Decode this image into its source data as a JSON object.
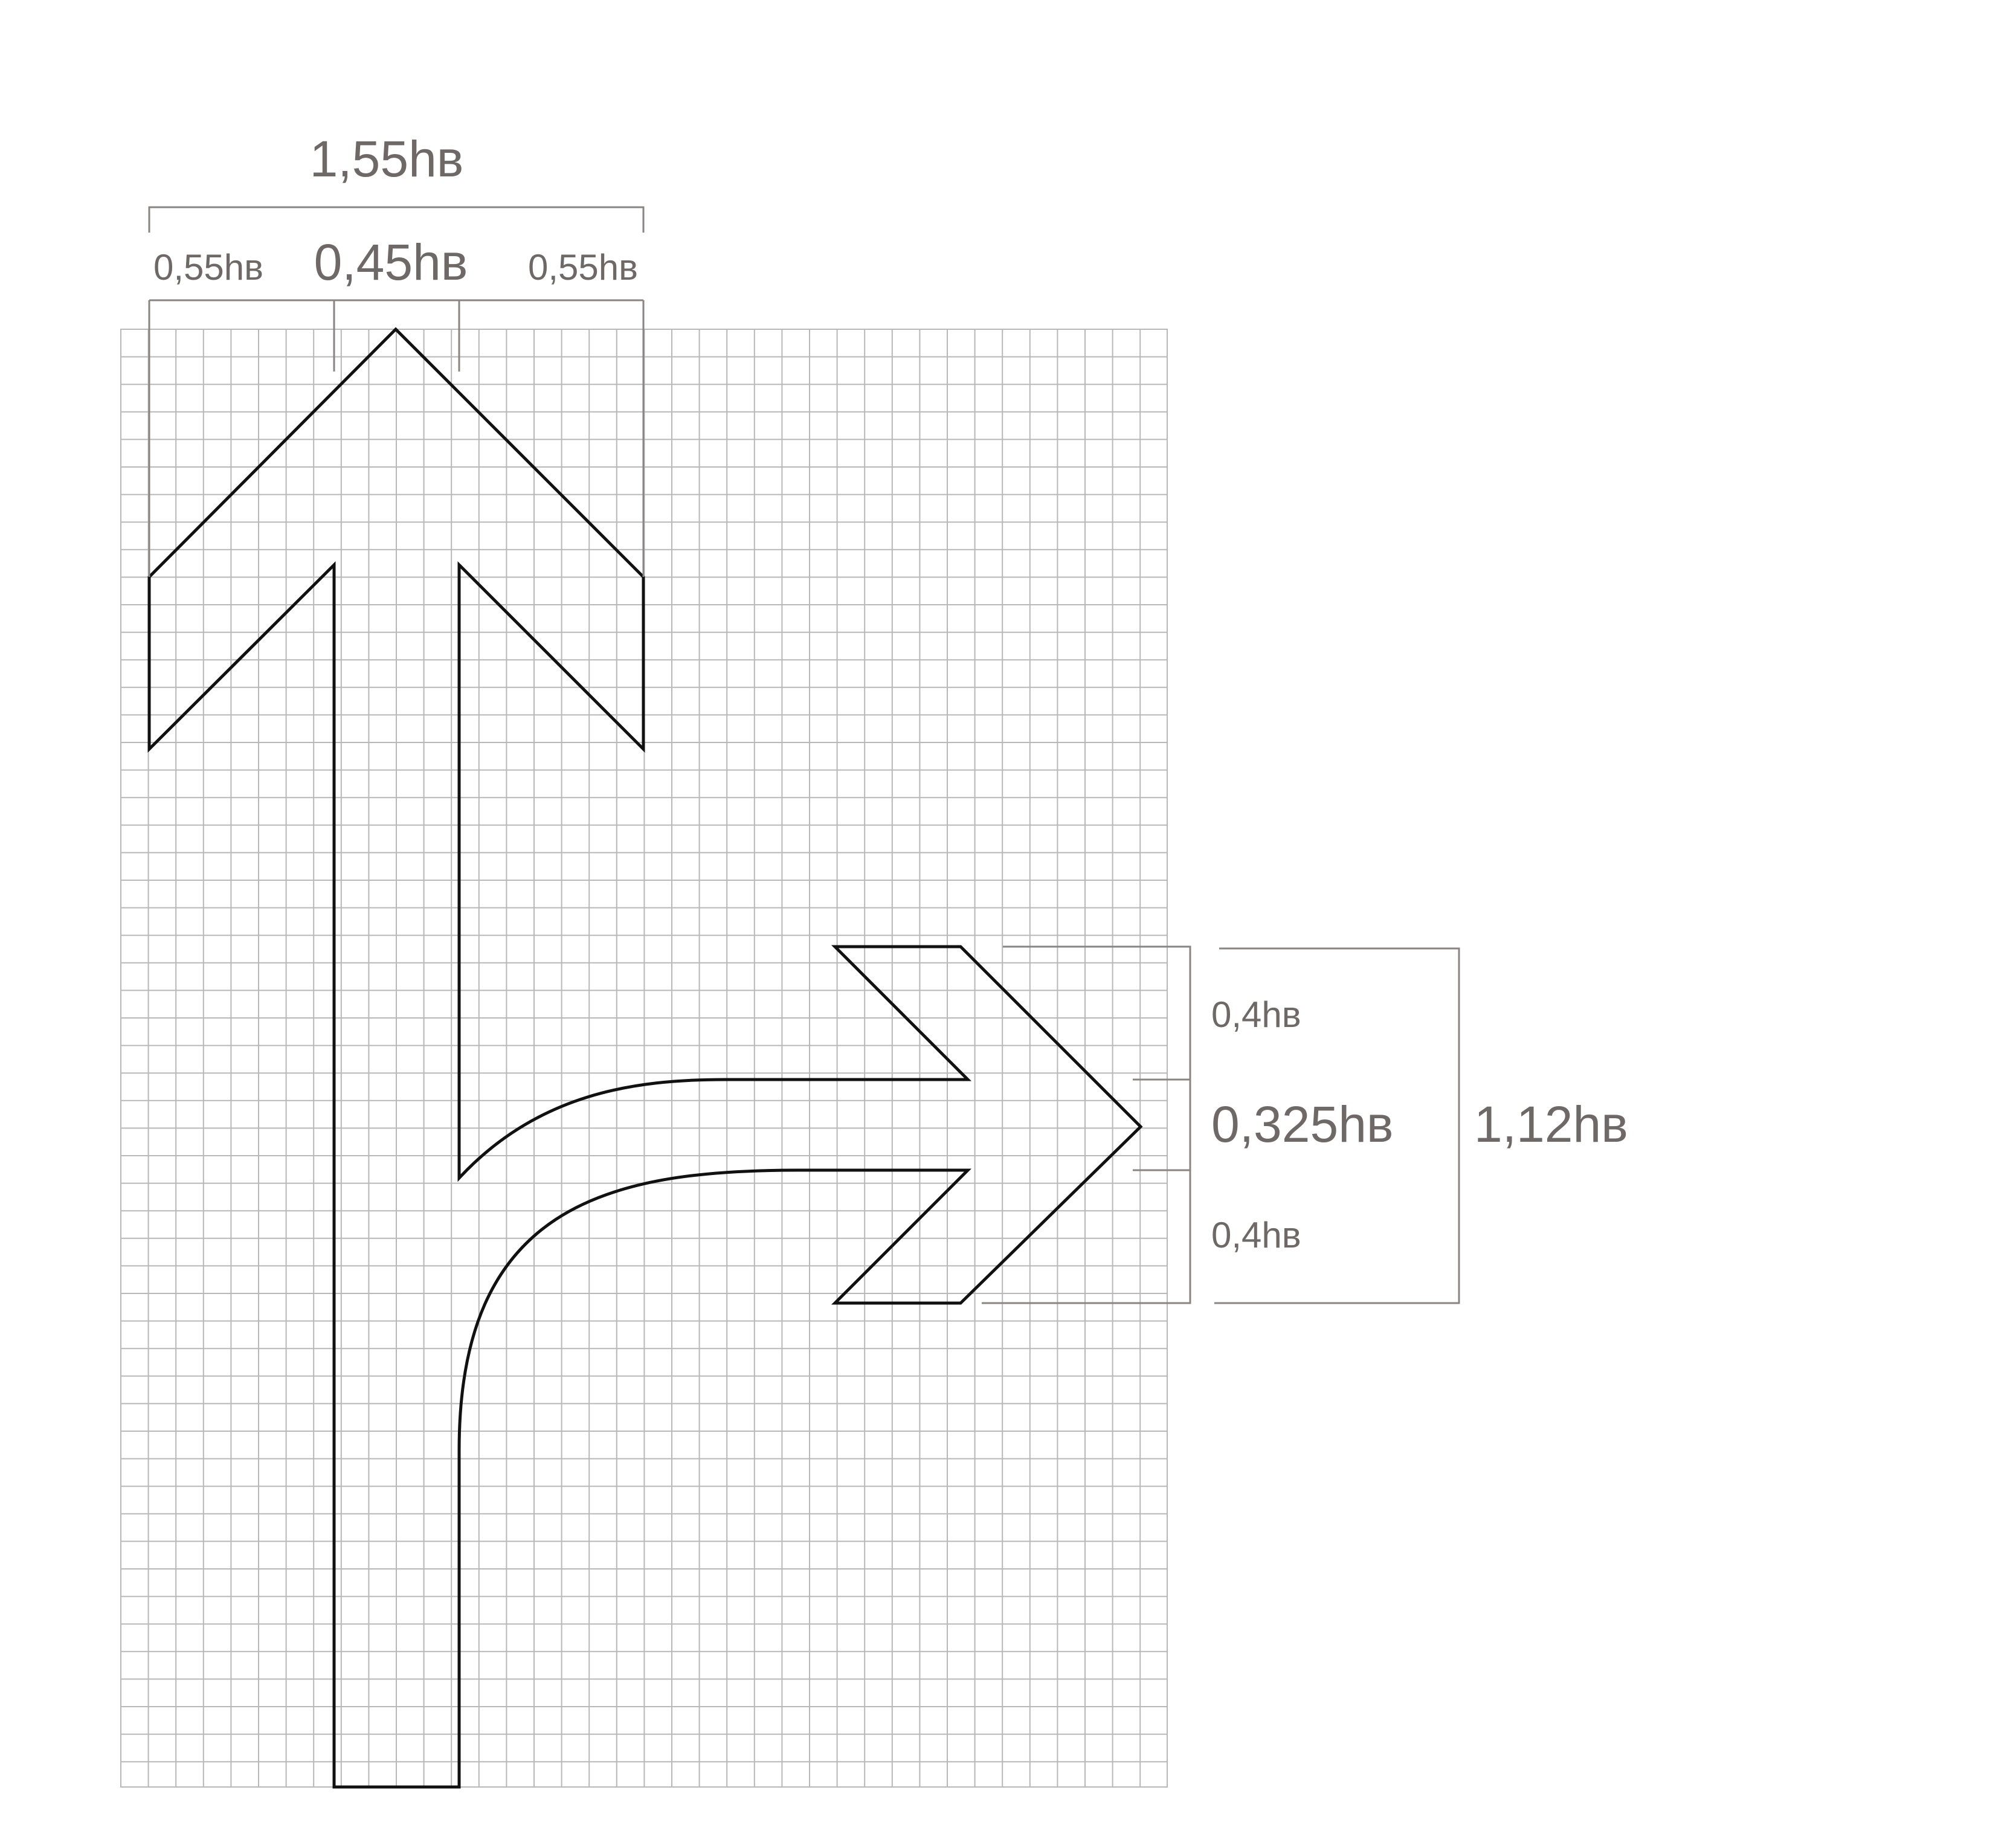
{
  "diagram": {
    "colors": {
      "grid": "#b8b8b8",
      "outline": "#111111",
      "dimension_line": "#8a8583",
      "label_text": "#6e6866",
      "background": "#ffffff"
    },
    "labels": {
      "total_width": "1,55hв",
      "left_barb": "0,55hв",
      "shaft_width": "0,45hв",
      "right_barb": "0,55hв",
      "upper_barb": "0,4hв",
      "branch_width": "0,325hв",
      "lower_barb": "0,4hв",
      "total_height": "1,12hв"
    }
  }
}
